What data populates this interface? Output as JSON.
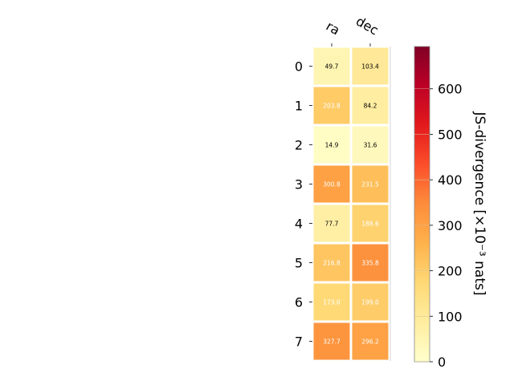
{
  "chart_data": {
    "type": "heatmap",
    "columns": [
      "ra",
      "dec"
    ],
    "rows": [
      "0",
      "1",
      "2",
      "3",
      "4",
      "5",
      "6",
      "7"
    ],
    "values": [
      [
        49.7,
        103.4
      ],
      [
        203.8,
        84.2
      ],
      [
        14.9,
        31.6
      ],
      [
        300.8,
        231.5
      ],
      [
        77.7,
        188.6
      ],
      [
        216.8,
        335.8
      ],
      [
        173.0,
        199.0
      ],
      [
        327.7,
        296.2
      ]
    ],
    "value_labels": [
      [
        "49.7",
        "103.4"
      ],
      [
        "203.8",
        "84.2"
      ],
      [
        "14.9",
        "31.6"
      ],
      [
        "300.8",
        "231.5"
      ],
      [
        "77.7",
        "188.6"
      ],
      [
        "216.8",
        "335.8"
      ],
      [
        "173.0",
        "199.0"
      ],
      [
        "327.7",
        "296.2"
      ]
    ],
    "colorbar": {
      "label": "JS-divergence [×10⁻³ nats]",
      "min": 0,
      "max": 693,
      "ticks": [
        "0",
        "100",
        "200",
        "300",
        "400",
        "500",
        "600"
      ],
      "colormap": "YlOrRd"
    },
    "text_threshold": 150,
    "colors": {
      "grid": "#ffffff",
      "text_dark": "#000000",
      "text_light": "#ffffff"
    }
  }
}
